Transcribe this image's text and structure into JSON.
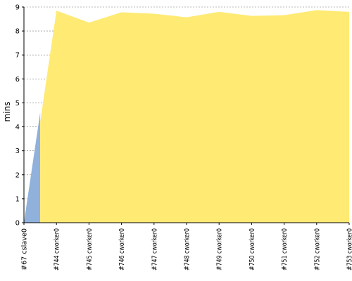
{
  "chart_data": {
    "type": "area",
    "title": "",
    "xlabel": "",
    "ylabel": "mins",
    "ylim": [
      0,
      9
    ],
    "yticks": [
      0,
      1,
      2,
      3,
      4,
      5,
      6,
      7,
      8,
      9
    ],
    "grid": true,
    "categories": [
      "#67 cslave0",
      "#744 cworker0",
      "#745 cworker0",
      "#746 cworker0",
      "#747 cworker0",
      "#748 cworker0",
      "#749 cworker0",
      "#750 cworker0",
      "#751 cworker0",
      "#752 cworker0",
      "#753 cworker0"
    ],
    "series": [
      {
        "color": "#8fb1dc",
        "values": [
          0,
          4.6,
          0,
          0,
          0,
          0,
          0,
          0,
          0,
          0,
          0
        ]
      },
      {
        "color": "#ffea73",
        "values": [
          0,
          4.2,
          8.35,
          8.78,
          8.72,
          8.57,
          8.8,
          8.63,
          8.66,
          8.87,
          8.8
        ]
      }
    ],
    "series_notes": "first series drops to 0 and second series starts just before the #744 sample",
    "gridline_color": "#777777",
    "axis_color": "#000000"
  }
}
